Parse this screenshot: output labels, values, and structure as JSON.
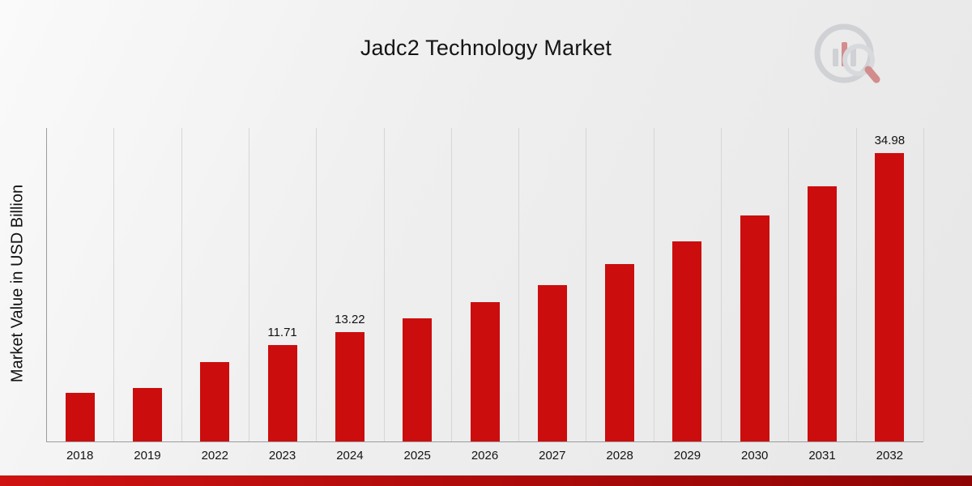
{
  "title": "Jadc2 Technology Market",
  "y_axis_label": "Market Value in USD Billion",
  "brand": {
    "logo_icon": "bar-chart-magnifier-logo"
  },
  "colors": {
    "bar": "#cc0d0d",
    "gridline": "#d6d6d6",
    "axis": "#9c9c9c",
    "footer_start": "#cf1212",
    "footer_end": "#8e0404",
    "text": "#141414",
    "logo_gray": "#b9bdc2",
    "logo_red": "#c24040"
  },
  "chart_data": {
    "type": "bar",
    "title": "Jadc2 Technology Market",
    "xlabel": "",
    "ylabel": "Market Value in USD Billion",
    "categories": [
      "2018",
      "2019",
      "2022",
      "2023",
      "2024",
      "2025",
      "2026",
      "2027",
      "2028",
      "2029",
      "2030",
      "2031",
      "2032"
    ],
    "values": [
      5.9,
      6.5,
      9.6,
      11.71,
      13.22,
      14.9,
      16.9,
      19.0,
      21.5,
      24.3,
      27.4,
      30.9,
      34.98
    ],
    "bar_labels": [
      "",
      "",
      "",
      "11.71",
      "13.22",
      "",
      "",
      "",
      "",
      "",
      "",
      "",
      "34.98"
    ],
    "ylim": [
      0,
      38
    ],
    "grid": "vertical",
    "legend": "none"
  }
}
